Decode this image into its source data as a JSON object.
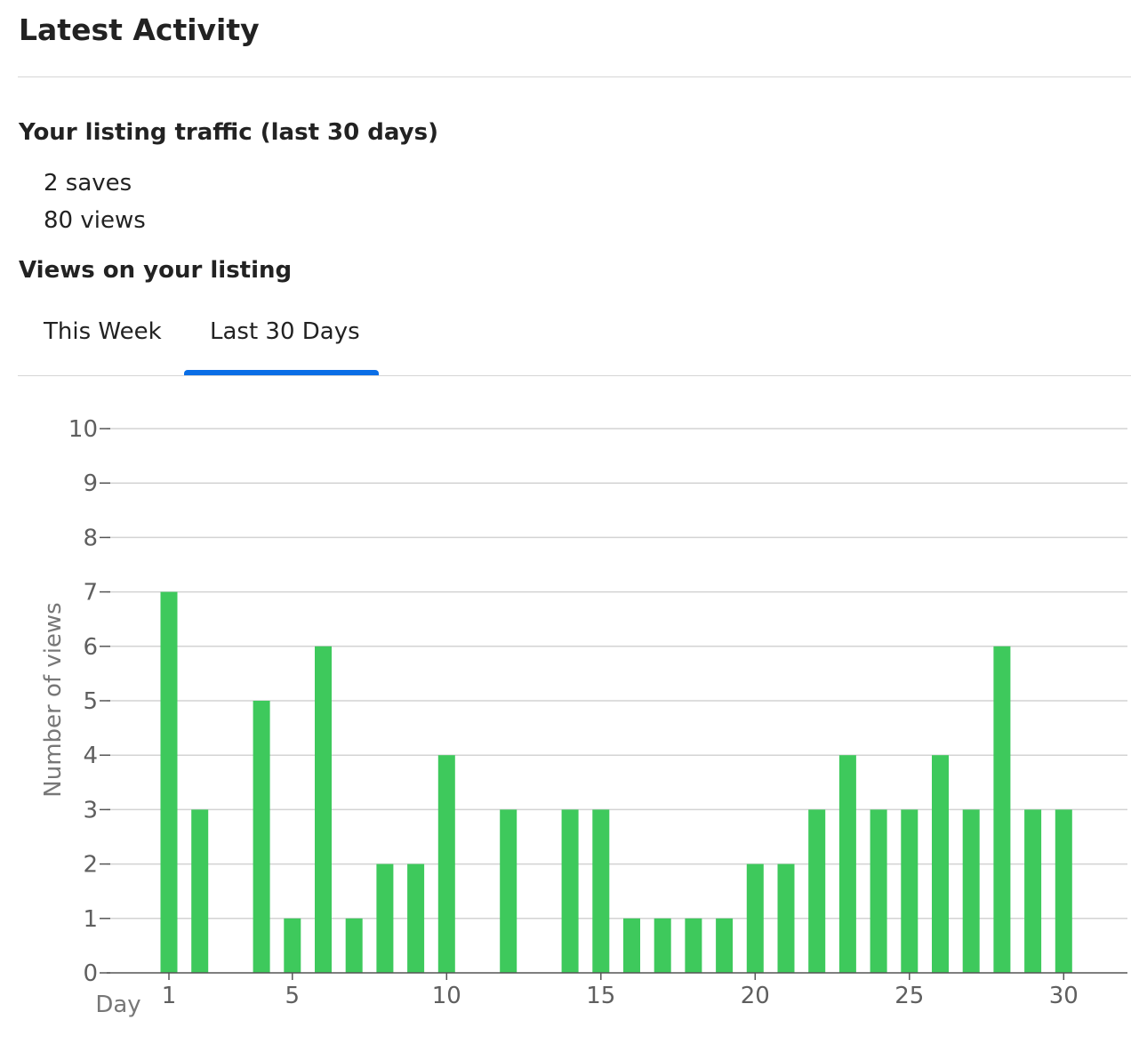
{
  "header": {
    "title": "Latest Activity"
  },
  "traffic": {
    "heading": "Your listing traffic (last 30 days)",
    "saves": "2 saves",
    "views": "80 views"
  },
  "views_section": {
    "heading": "Views on your listing",
    "tabs": [
      {
        "label": "This Week",
        "selected": false
      },
      {
        "label": "Last 30 Days",
        "selected": true
      }
    ]
  },
  "colors": {
    "bar": "#3ec95c",
    "tab_indicator": "#0a6ee6",
    "axis_text": "#5f5f5f",
    "grid": "#d3d3d3"
  },
  "chart_data": {
    "type": "bar",
    "title": "",
    "xlabel": "Day",
    "ylabel": "Number of views",
    "x": [
      1,
      2,
      3,
      4,
      5,
      6,
      7,
      8,
      9,
      10,
      11,
      12,
      13,
      14,
      15,
      16,
      17,
      18,
      19,
      20,
      21,
      22,
      23,
      24,
      25,
      26,
      27,
      28,
      29,
      30
    ],
    "values": [
      7,
      3,
      0,
      5,
      1,
      6,
      1,
      2,
      2,
      4,
      0,
      3,
      0,
      3,
      3,
      1,
      1,
      1,
      1,
      2,
      2,
      3,
      4,
      3,
      3,
      4,
      3,
      6,
      3,
      3
    ],
    "ylim": [
      0,
      10
    ],
    "yticks": [
      0,
      1,
      2,
      3,
      4,
      5,
      6,
      7,
      8,
      9,
      10
    ],
    "xticks": [
      1,
      5,
      10,
      15,
      20,
      25,
      30
    ],
    "grid": true
  }
}
